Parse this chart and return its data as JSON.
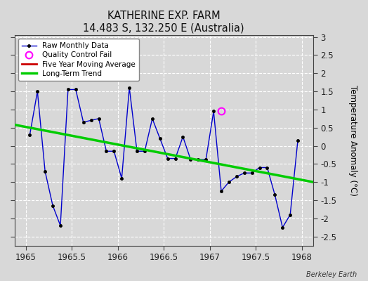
{
  "title": "KATHERINE EXP. FARM",
  "subtitle": "14.483 S, 132.250 E (Australia)",
  "ylabel": "Temperature Anomaly (°C)",
  "credit": "Berkeley Earth",
  "xlim": [
    1964.875,
    1968.125
  ],
  "ylim": [
    -2.75,
    3.05
  ],
  "xticks": [
    1965,
    1965.5,
    1966,
    1966.5,
    1967,
    1967.5,
    1968
  ],
  "yticks": [
    -2.5,
    -2.0,
    -1.5,
    -1.0,
    -0.5,
    0.0,
    0.5,
    1.0,
    1.5,
    2.0,
    2.5,
    3.0
  ],
  "background_color": "#d8d8d8",
  "plot_bg_color": "#d8d8d8",
  "raw_x": [
    1965.042,
    1965.125,
    1965.208,
    1965.292,
    1965.375,
    1965.458,
    1965.542,
    1965.625,
    1965.708,
    1965.792,
    1965.875,
    1965.958,
    1966.042,
    1966.125,
    1966.208,
    1966.292,
    1966.375,
    1966.458,
    1966.542,
    1966.625,
    1966.708,
    1966.792,
    1966.875,
    1966.958,
    1967.042,
    1967.125,
    1967.208,
    1967.292,
    1967.375,
    1967.458,
    1967.542,
    1967.625,
    1967.708,
    1967.792,
    1967.875,
    1967.958
  ],
  "raw_y": [
    0.3,
    1.5,
    -0.7,
    -1.65,
    -2.2,
    1.55,
    1.55,
    0.65,
    0.7,
    0.75,
    -0.15,
    -0.15,
    -0.9,
    1.6,
    -0.15,
    -0.15,
    0.75,
    0.2,
    -0.35,
    -0.35,
    0.25,
    -0.38,
    -0.38,
    -0.38,
    0.95,
    -1.25,
    -1.0,
    -0.85,
    -0.75,
    -0.75,
    -0.6,
    -0.6,
    -1.35,
    -2.25,
    -1.9,
    0.15
  ],
  "qc_fail_x": [
    1967.125
  ],
  "qc_fail_y": [
    0.95
  ],
  "trend_x": [
    1964.875,
    1968.125
  ],
  "trend_y": [
    0.58,
    -1.0
  ],
  "raw_color": "#0000cc",
  "raw_marker_color": "#000000",
  "qc_color": "#ff00ff",
  "trend_color": "#00cc00",
  "ma_color": "#cc0000",
  "grid_color": "#ffffff",
  "spine_color": "#444444",
  "tick_label_color": "#222222"
}
